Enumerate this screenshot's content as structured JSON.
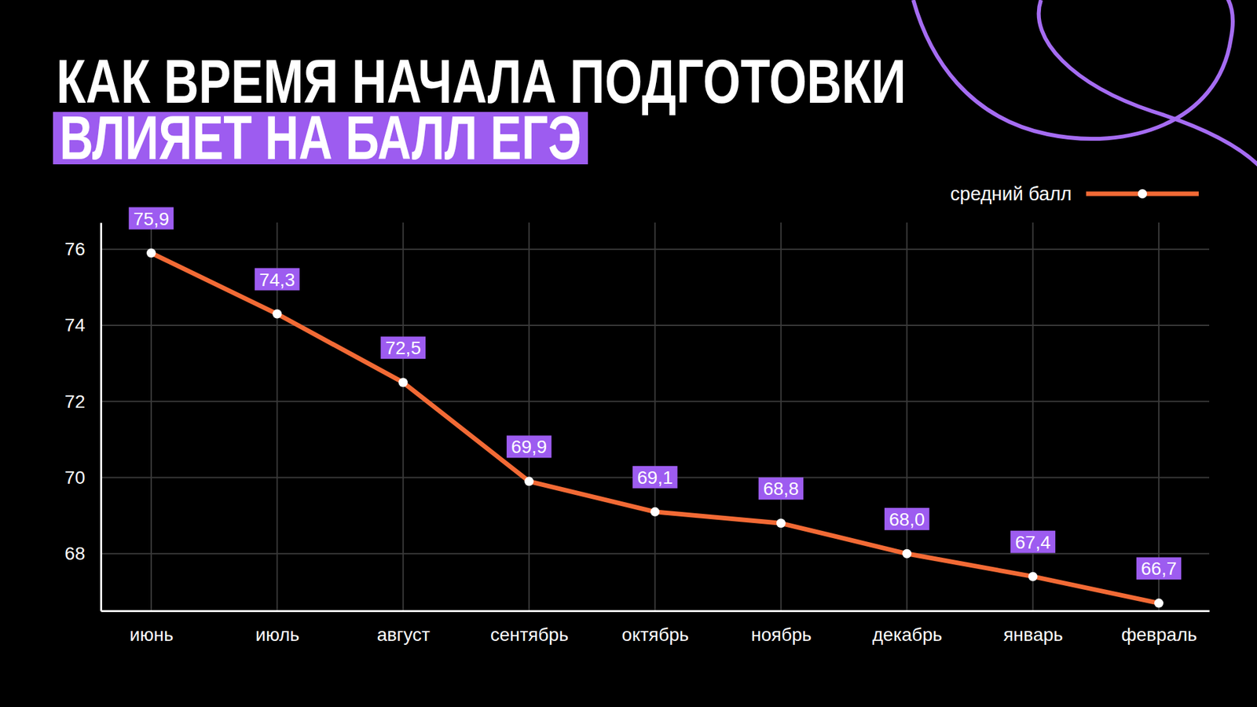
{
  "chart_data": {
    "type": "line",
    "title": "КАК ВРЕМЯ НАЧАЛА ПОДГОТОВКИ",
    "subtitle": "ВЛИЯЕТ НА БАЛЛ ЕГЭ",
    "categories": [
      "июнь",
      "июль",
      "август",
      "сентябрь",
      "октябрь",
      "ноябрь",
      "декабрь",
      "январь",
      "февраль"
    ],
    "series": [
      {
        "name": "средний балл",
        "color": "#f26a35",
        "values": [
          75.9,
          74.3,
          72.5,
          69.9,
          69.1,
          68.8,
          68.0,
          67.4,
          66.7
        ],
        "value_labels": [
          "75,9",
          "74,3",
          "72,5",
          "69,9",
          "69,1",
          "68,8",
          "68,0",
          "67,4",
          "66,7"
        ],
        "marker": "circle",
        "line_style": "solid"
      }
    ],
    "ylim": [
      66.5,
      76.7
    ],
    "yticks": [
      68,
      70,
      72,
      74,
      76
    ],
    "grid": true,
    "legend": "top right",
    "data_labels": true
  }
}
